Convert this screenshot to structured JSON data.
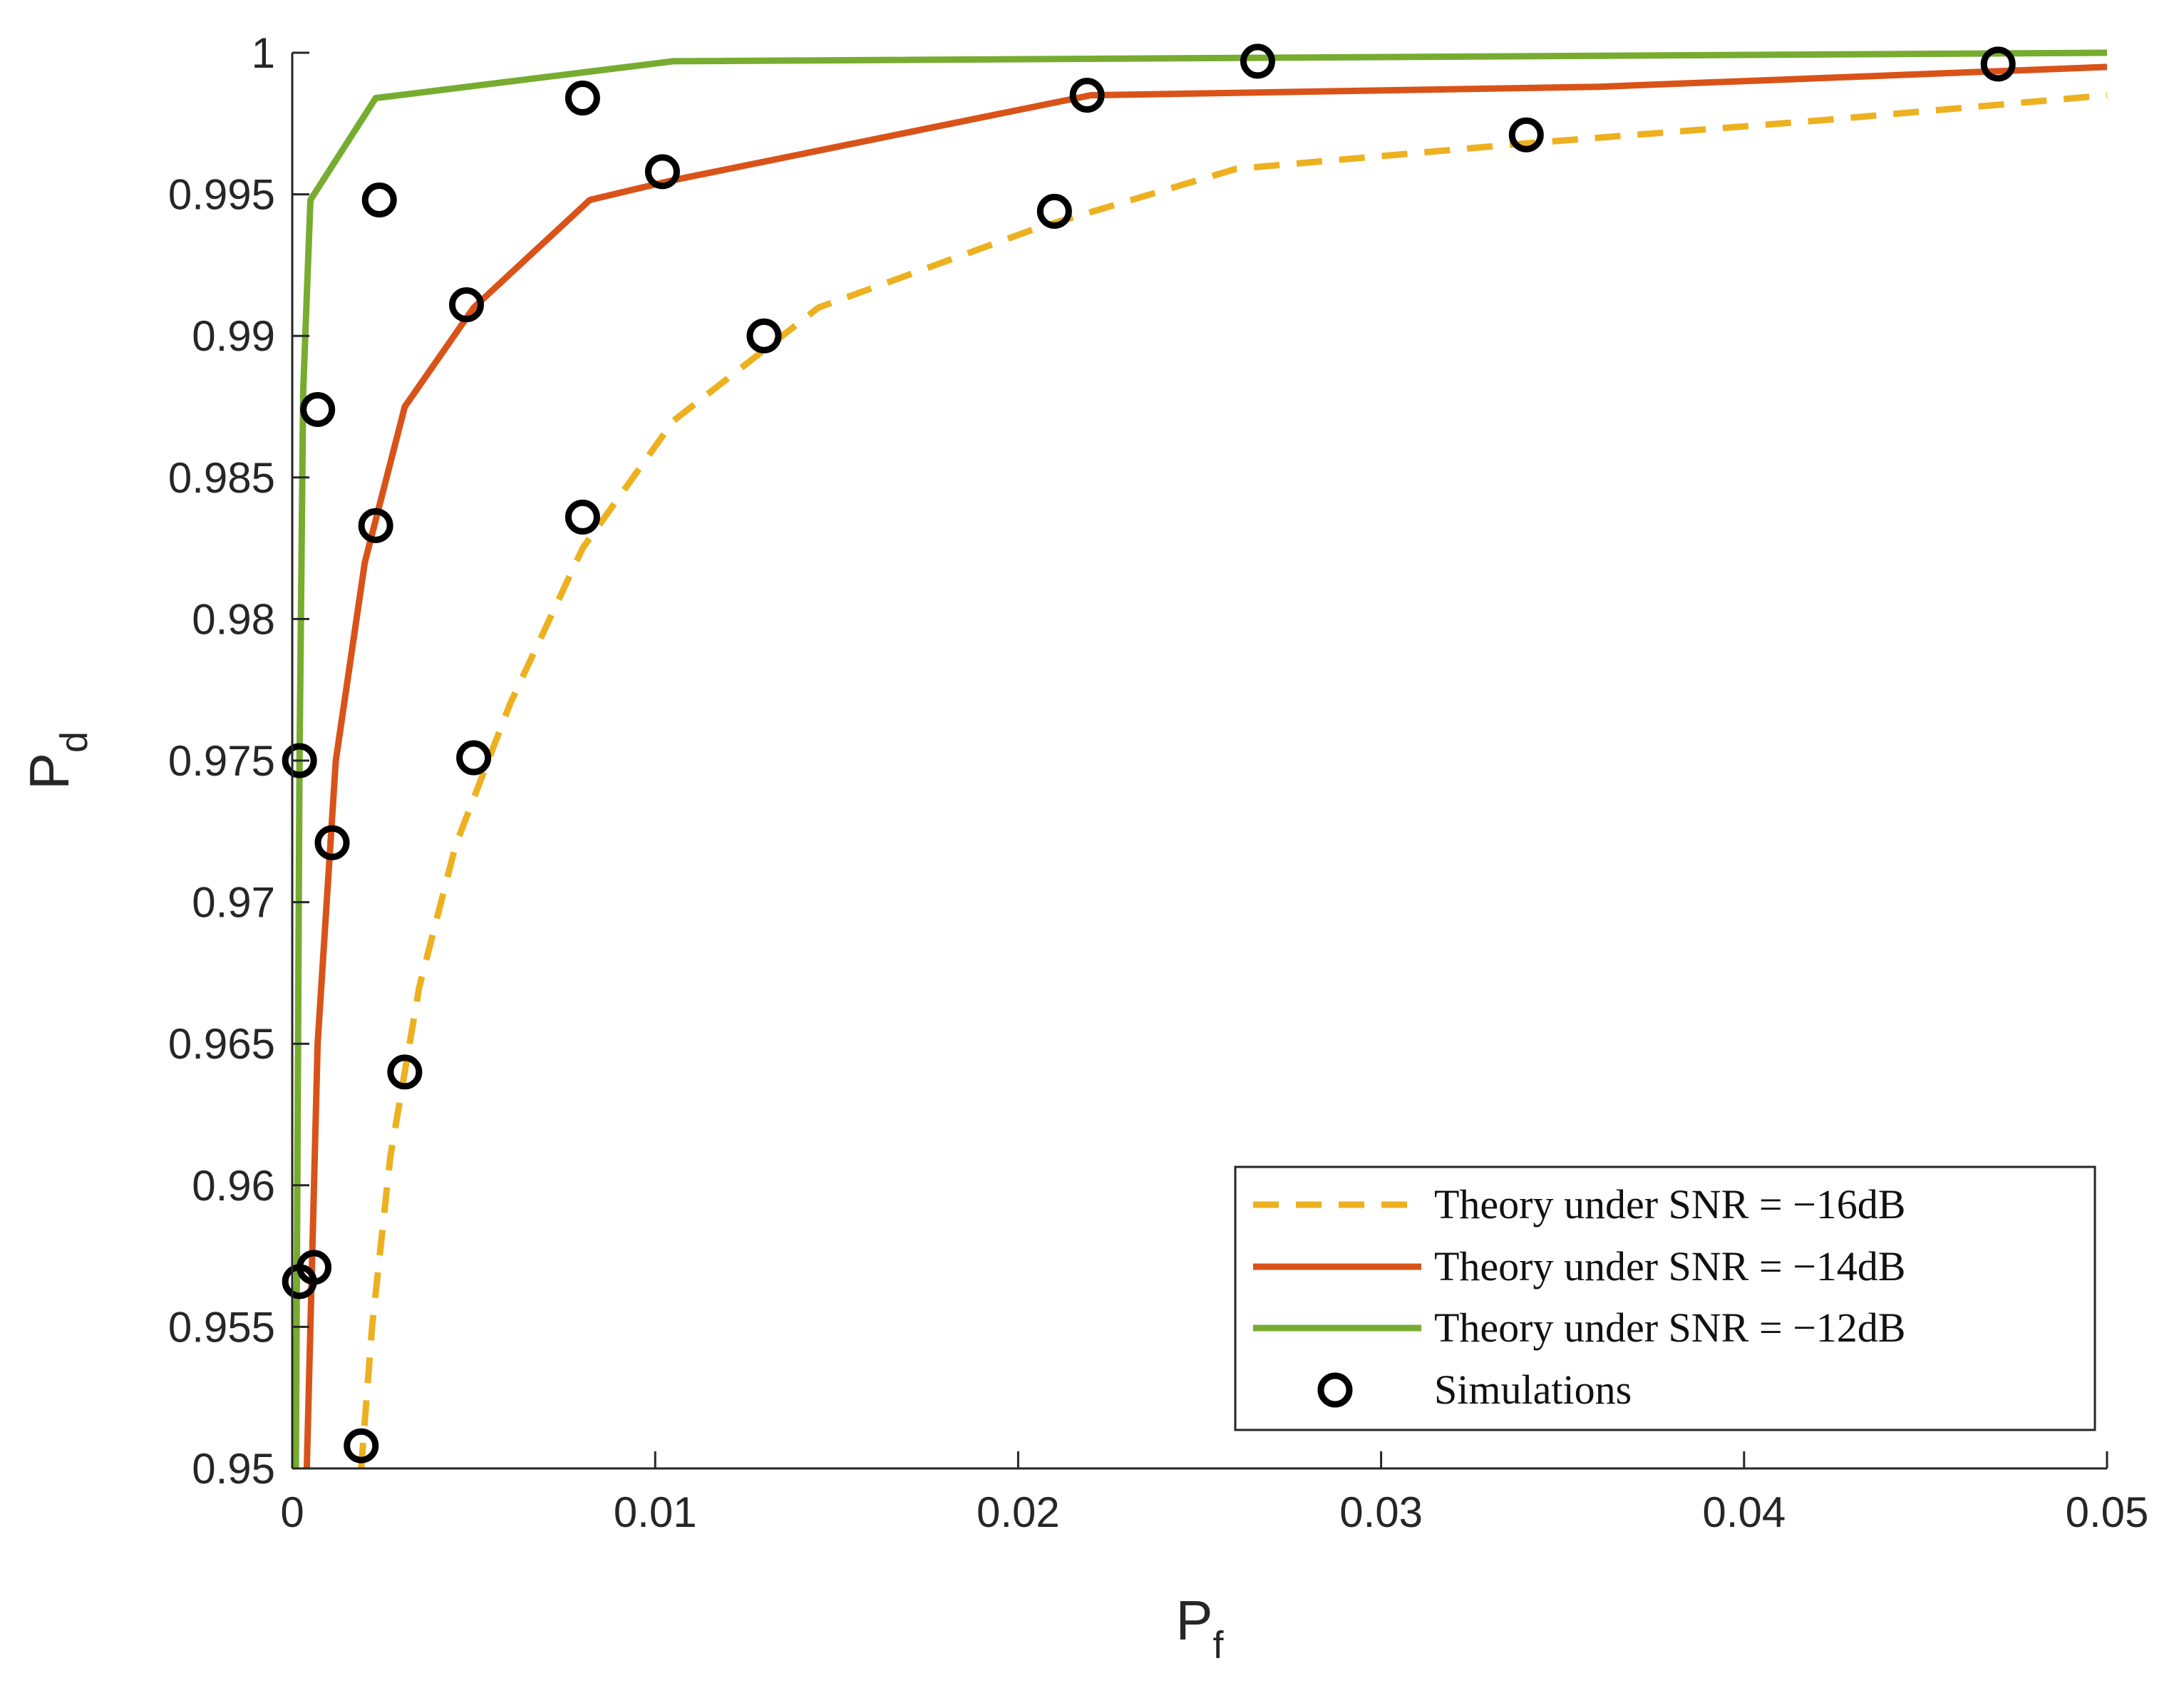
{
  "chart_data": {
    "type": "line",
    "xlabel": "P",
    "xlabel_sub": "f",
    "ylabel": "P",
    "ylabel_sub": "d",
    "xlim": [
      0,
      0.05
    ],
    "ylim": [
      0.95,
      1
    ],
    "xticks": [
      0,
      0.01,
      0.02,
      0.03,
      0.04,
      0.05
    ],
    "xtick_labels": [
      "0",
      "0.01",
      "0.02",
      "0.03",
      "0.04",
      "0.05"
    ],
    "yticks": [
      0.95,
      0.955,
      0.96,
      0.965,
      0.97,
      0.975,
      0.98,
      0.985,
      0.99,
      0.995,
      1
    ],
    "ytick_labels": [
      "0.95",
      "0.955",
      "0.96",
      "0.965",
      "0.97",
      "0.975",
      "0.98",
      "0.985",
      "0.99",
      "0.995",
      "1"
    ],
    "grid": false,
    "legend_position": "bottom-right",
    "series": [
      {
        "name": "Theory under SNR = −16dB",
        "style": "dashed",
        "color": "#EDB120",
        "x": [
          0.0019,
          0.0022,
          0.0027,
          0.0035,
          0.0045,
          0.006,
          0.008,
          0.0105,
          0.0145,
          0.0205,
          0.026,
          0.034,
          0.042,
          0.05
        ],
        "y": [
          0.95,
          0.955,
          0.961,
          0.967,
          0.972,
          0.977,
          0.9825,
          0.987,
          0.991,
          0.9938,
          0.9959,
          0.9968,
          0.9976,
          0.9985
        ]
      },
      {
        "name": "Theory under SNR = −14dB",
        "style": "solid",
        "color": "#D95319",
        "x": [
          0.0004,
          0.0007,
          0.0012,
          0.002,
          0.0031,
          0.005,
          0.0082,
          0.0105,
          0.022,
          0.036,
          0.05
        ],
        "y": [
          0.95,
          0.965,
          0.975,
          0.982,
          0.9875,
          0.991,
          0.9948,
          0.9955,
          0.9985,
          0.9988,
          0.9995
        ]
      },
      {
        "name": "Theory under SNR = −12dB",
        "style": "solid",
        "color": "#77AC30",
        "x": [
          0.0001,
          0.0002,
          0.0003,
          0.0005,
          0.0023,
          0.0105,
          0.05
        ],
        "y": [
          0.95,
          0.975,
          0.988,
          0.9948,
          0.9984,
          0.9997,
          1.0
        ]
      },
      {
        "name": "Simulations",
        "style": "markers",
        "color": "#000000",
        "x": [
          0.0019,
          0.0031,
          0.005,
          0.008,
          0.013,
          0.021,
          0.034,
          0.047,
          0.0006,
          0.0011,
          0.0023,
          0.0048,
          0.0102,
          0.0219,
          0.0002,
          0.0002,
          0.0007,
          0.0024,
          0.008,
          0.0266
        ],
        "y": [
          0.9508,
          0.964,
          0.9751,
          0.9836,
          0.99,
          0.9944,
          0.9971,
          0.9996,
          0.9571,
          0.9721,
          0.9833,
          0.9911,
          0.9958,
          0.9985,
          0.9566,
          0.975,
          0.9874,
          0.9948,
          0.9984,
          0.9997
        ]
      }
    ]
  }
}
